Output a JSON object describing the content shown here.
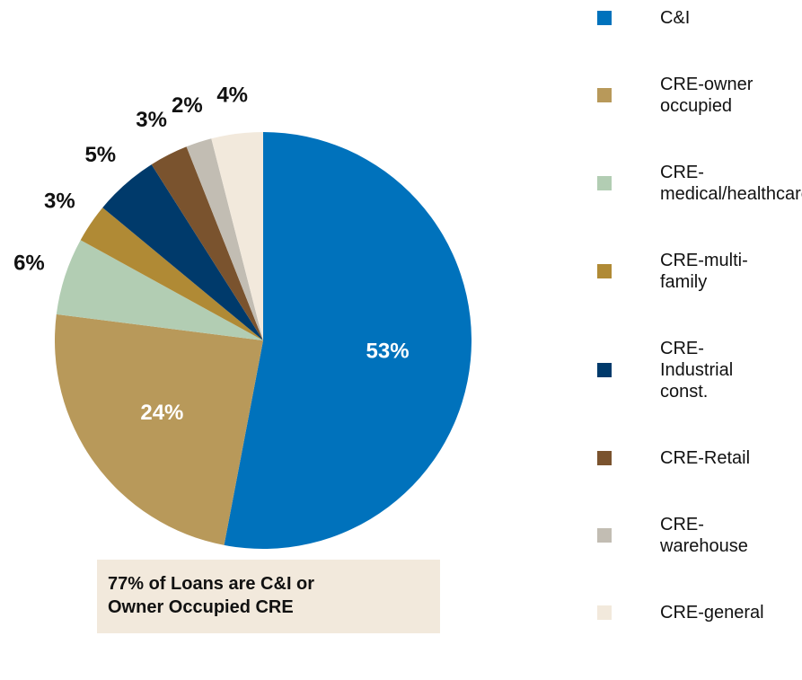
{
  "chart_data": {
    "type": "pie",
    "categories": [
      "C&I",
      "CRE-owner occupied",
      "CRE-medical/healthcare",
      "CRE-multi-family",
      "CRE-Industrial const.",
      "CRE-Retail",
      "CRE-warehouse",
      "CRE-general"
    ],
    "values": [
      53,
      24,
      6,
      3,
      5,
      3,
      2,
      4
    ],
    "value_labels": [
      "53%",
      "24%",
      "6%",
      "3%",
      "5%",
      "3%",
      "2%",
      "4%"
    ],
    "colors": [
      "#0072bc",
      "#b8995a",
      "#b2cdb3",
      "#b08a35",
      "#003a6b",
      "#7a532e",
      "#c2bdb3",
      "#f2e9dc"
    ],
    "annotation": "77% of Loans are C&I or Owner Occupied CRE"
  }
}
